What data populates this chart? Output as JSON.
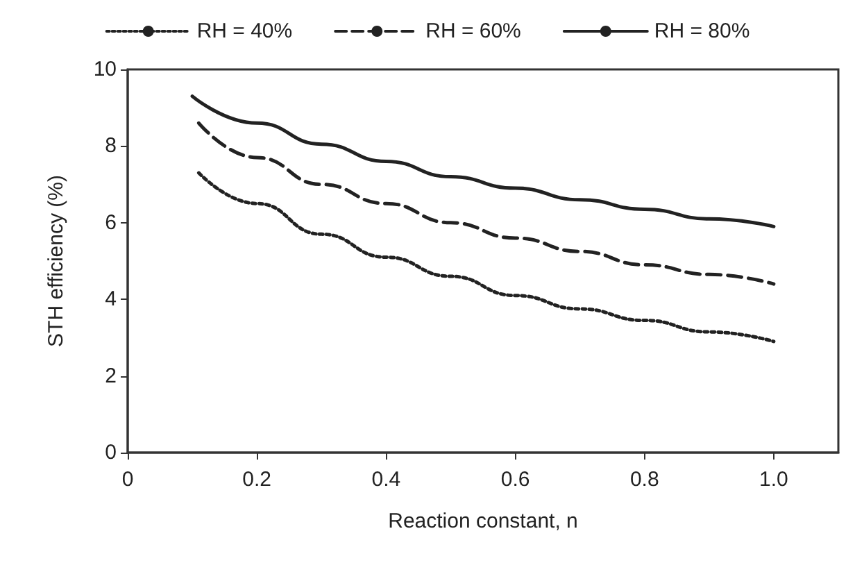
{
  "chart_data": {
    "type": "line",
    "xlabel": "Reaction constant, n",
    "ylabel": "STH efficiency (%)",
    "xlim": [
      0,
      1.1
    ],
    "xticks": [
      0,
      0.2,
      0.4,
      0.6,
      0.8,
      {
        "value": 1,
        "label": "1.0"
      }
    ],
    "ylim": [
      0,
      10
    ],
    "yticks": [
      0,
      2,
      4,
      6,
      8,
      10
    ],
    "grid": false,
    "legend": "top",
    "marker": "none",
    "series": [
      {
        "name": "RH = 40%",
        "color": "#222222",
        "line_style": "dotted",
        "x": [
          0.11,
          0.2,
          0.3,
          0.4,
          0.5,
          0.6,
          0.7,
          0.8,
          0.9,
          1.0
        ],
        "values": [
          7.3,
          6.5,
          5.7,
          5.1,
          4.6,
          4.1,
          3.75,
          3.45,
          3.15,
          2.9
        ]
      },
      {
        "name": "RH = 60%",
        "color": "#222222",
        "line_style": "dashed",
        "x": [
          0.11,
          0.2,
          0.3,
          0.4,
          0.5,
          0.6,
          0.7,
          0.8,
          0.9,
          1.0
        ],
        "values": [
          8.6,
          7.7,
          7.0,
          6.5,
          6.0,
          5.6,
          5.25,
          4.9,
          4.65,
          4.4
        ]
      },
      {
        "name": "RH = 80%",
        "color": "#222222",
        "line_style": "solid",
        "x": [
          0.1,
          0.2,
          0.3,
          0.4,
          0.5,
          0.6,
          0.7,
          0.8,
          0.9,
          1.0
        ],
        "values": [
          9.3,
          8.6,
          8.05,
          7.6,
          7.2,
          6.9,
          6.6,
          6.35,
          6.1,
          5.9
        ]
      }
    ]
  }
}
